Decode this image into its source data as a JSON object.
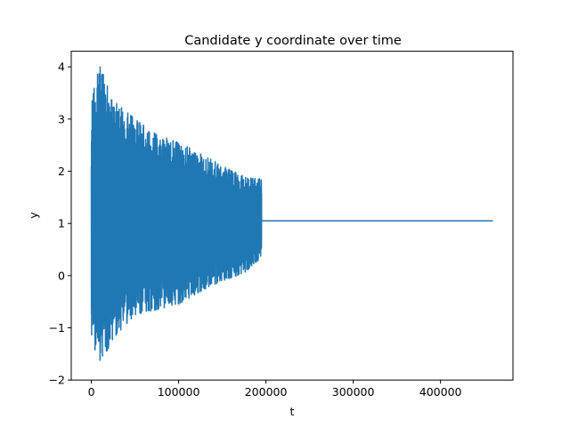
{
  "chart_data": {
    "type": "line",
    "title": "Candidate y coordinate over time",
    "xlabel": "t",
    "ylabel": "y",
    "xlim": [
      -23000,
      483000
    ],
    "ylim": [
      -2,
      4.3
    ],
    "xticks": [
      0,
      100000,
      200000,
      300000,
      400000
    ],
    "xtick_labels": [
      "0",
      "100000",
      "200000",
      "300000",
      "400000"
    ],
    "yticks": [
      -2,
      -1,
      0,
      1,
      2,
      3,
      4
    ],
    "ytick_labels": [
      "−2",
      "−1",
      "0",
      "1",
      "2",
      "3",
      "4"
    ],
    "grid": false,
    "legend": "none",
    "series": [
      {
        "color": "#1f77b4",
        "t_range": [
          0,
          460000
        ],
        "oscillation_end_t": 195000,
        "steady_value": 1.05,
        "envelope_t": [
          0,
          10000,
          25000,
          50000,
          75000,
          100000,
          125000,
          150000,
          175000,
          195000
        ],
        "envelope_upper": [
          3.45,
          4.02,
          3.35,
          3.0,
          2.7,
          2.55,
          2.35,
          2.1,
          1.9,
          1.85
        ],
        "envelope_lower": [
          -1.2,
          -1.72,
          -1.2,
          -0.75,
          -0.65,
          -0.55,
          -0.3,
          -0.1,
          0.05,
          0.35
        ]
      }
    ]
  }
}
